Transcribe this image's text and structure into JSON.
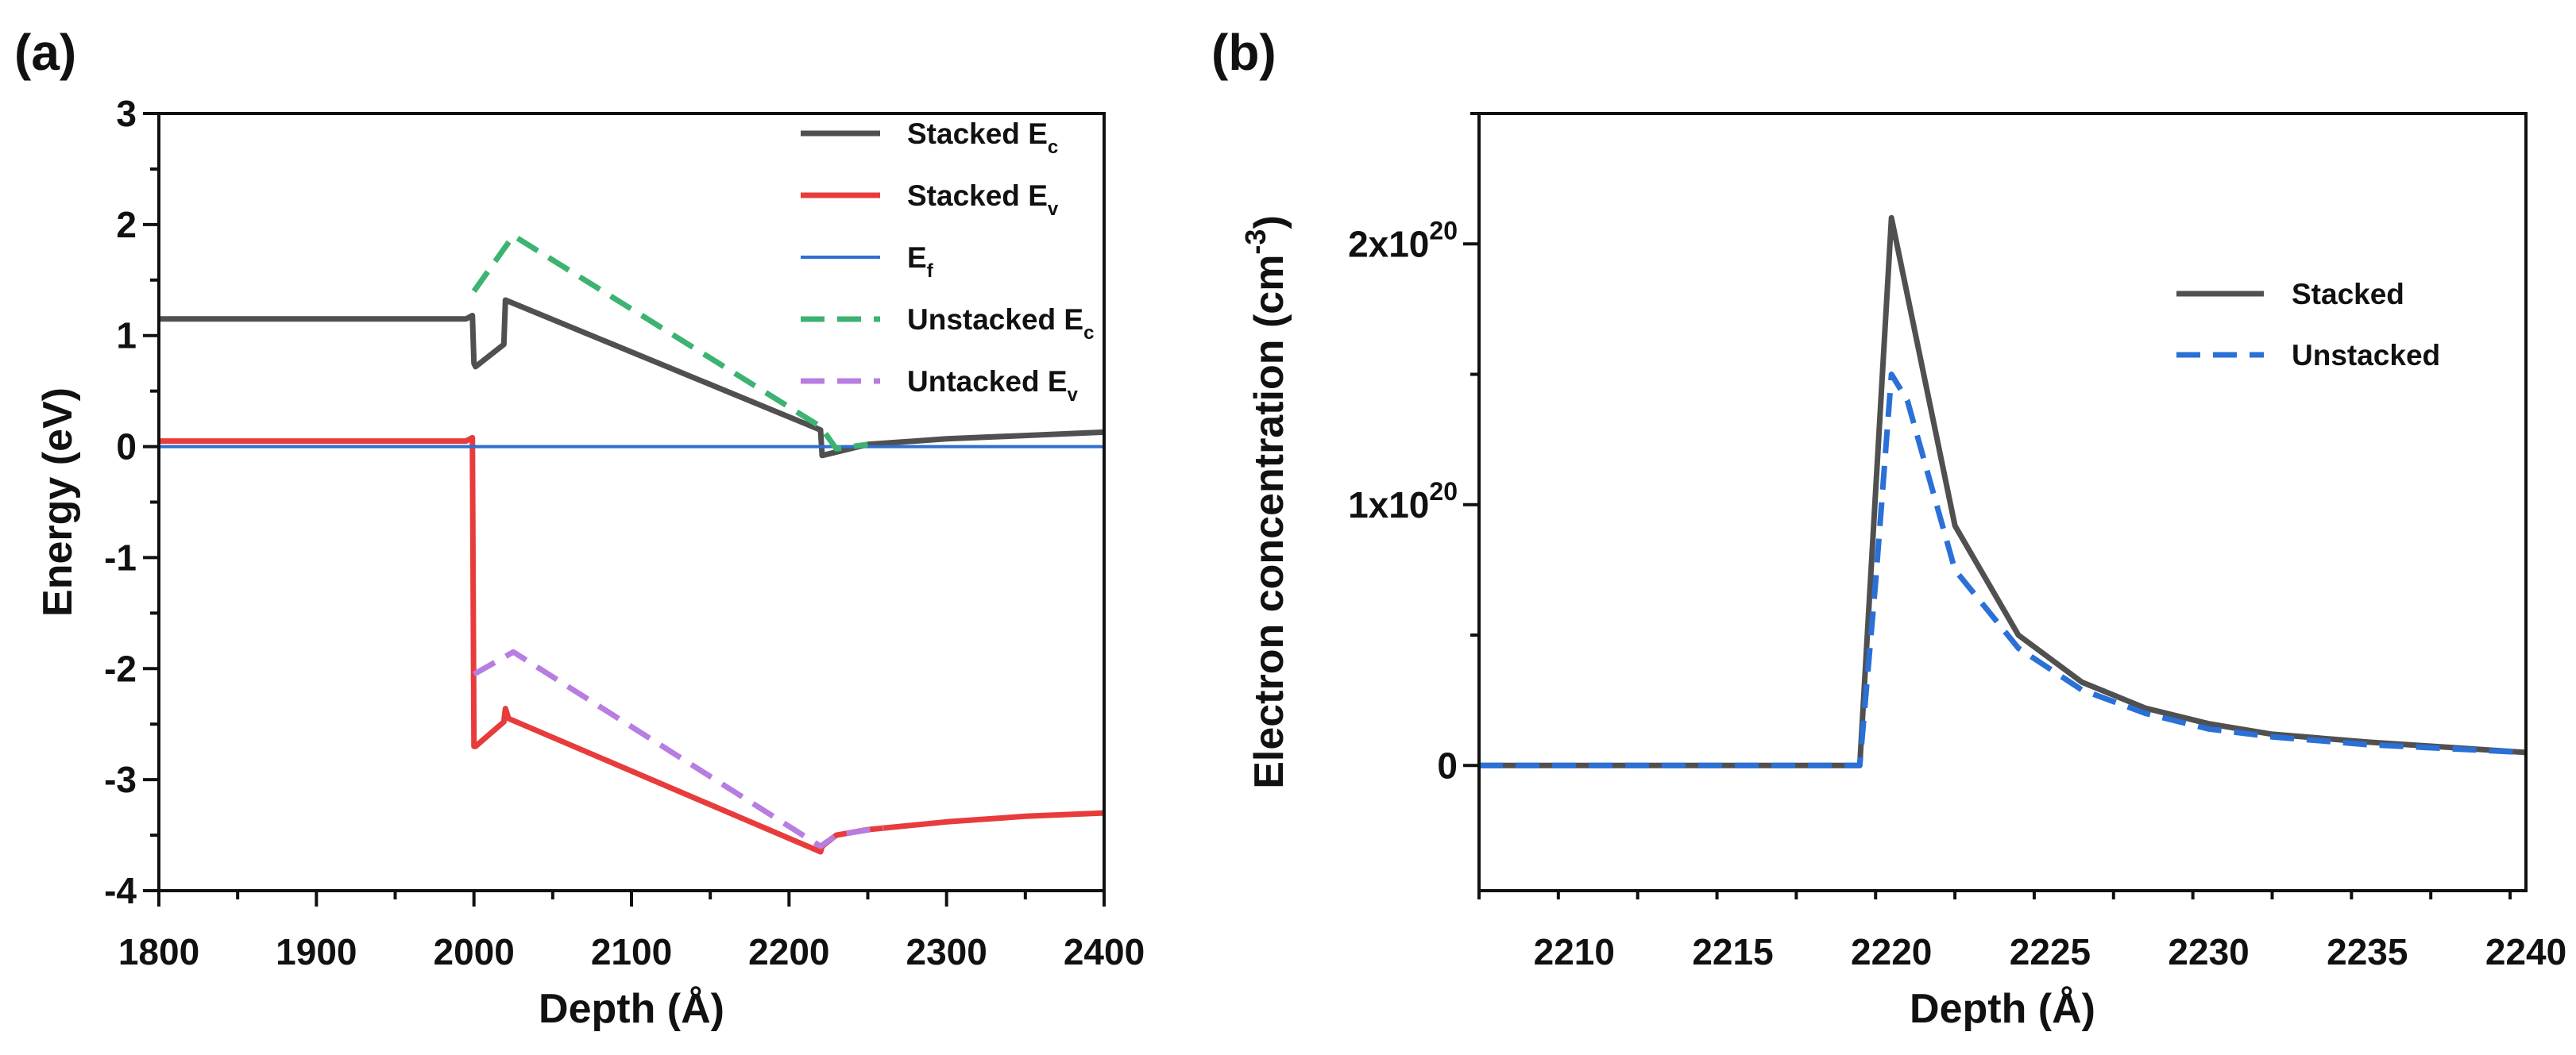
{
  "chart_data": [
    {
      "panel_label": "(a)",
      "type": "line",
      "xlabel": "Depth (Å)",
      "ylabel": "Energy (eV)",
      "xlim": [
        1800,
        2400
      ],
      "ylim": [
        -4,
        3
      ],
      "xticks": [
        "1800",
        "1900",
        "2000",
        "2100",
        "2200",
        "2300",
        "2400"
      ],
      "yticks": [
        "-4",
        "-3",
        "-2",
        "-1",
        "0",
        "1",
        "2",
        "3"
      ],
      "legend_position": "top-right",
      "series": [
        {
          "name": "Stacked E",
          "subscript": "c",
          "color": "#505050",
          "dash": "solid",
          "points": [
            [
              1800,
              1.15
            ],
            [
              1995,
              1.15
            ],
            [
              1999,
              1.18
            ],
            [
              2000,
              0.75
            ],
            [
              2001,
              0.72
            ],
            [
              2019,
              0.92
            ],
            [
              2020,
              1.32
            ],
            [
              2220,
              0.15
            ],
            [
              2221,
              -0.08
            ],
            [
              2250,
              0.02
            ],
            [
              2300,
              0.07
            ],
            [
              2350,
              0.1
            ],
            [
              2400,
              0.13
            ]
          ]
        },
        {
          "name": "Stacked E",
          "subscript": "v",
          "color": "#e83c3c",
          "dash": "solid",
          "points": [
            [
              1800,
              0.05
            ],
            [
              1995,
              0.05
            ],
            [
              1999,
              0.08
            ],
            [
              2000,
              -2.7
            ],
            [
              2001,
              -2.7
            ],
            [
              2019,
              -2.48
            ],
            [
              2020,
              -2.36
            ],
            [
              2022,
              -2.45
            ],
            [
              2220,
              -3.65
            ],
            [
              2221,
              -3.6
            ],
            [
              2230,
              -3.5
            ],
            [
              2250,
              -3.45
            ],
            [
              2300,
              -3.38
            ],
            [
              2350,
              -3.33
            ],
            [
              2400,
              -3.3
            ]
          ]
        },
        {
          "name": "E",
          "subscript": "f",
          "color": "#2f6fd0",
          "dash": "solid",
          "points": [
            [
              1800,
              0
            ],
            [
              2400,
              0
            ]
          ]
        },
        {
          "name": "Unstacked E",
          "subscript": "c",
          "color": "#3cb371",
          "dash": "dashed",
          "points": [
            [
              2000,
              1.4
            ],
            [
              2025,
              1.9
            ],
            [
              2220,
              0.18
            ],
            [
              2230,
              -0.02
            ],
            [
              2250,
              0.02
            ]
          ]
        },
        {
          "name": "Untacked E",
          "subscript": "v",
          "color": "#b77de0",
          "dash": "dashed",
          "points": [
            [
              2000,
              -2.05
            ],
            [
              2025,
              -1.85
            ],
            [
              2220,
              -3.6
            ],
            [
              2230,
              -3.5
            ],
            [
              2260,
              -3.43
            ]
          ]
        }
      ]
    },
    {
      "panel_label": "(b)",
      "type": "line",
      "xlabel": "Depth (Å)",
      "ylabel": "Electron concentration (cm",
      "ylabel_sup": "-3",
      "ylabel_close": ")",
      "xlim": [
        2207,
        2240
      ],
      "ylim": [
        -0.48,
        2.5
      ],
      "ytick_unit": "×10^20",
      "xticks": [
        "2210",
        "2215",
        "2220",
        "2225",
        "2230",
        "2235",
        "2240"
      ],
      "yticks": [
        {
          "value": 0,
          "label": "0",
          "sup": ""
        },
        {
          "value": 1,
          "label": "1x10",
          "sup": "20"
        },
        {
          "value": 2,
          "label": "2x10",
          "sup": "20"
        }
      ],
      "legend_position": "center-right",
      "series": [
        {
          "name": "Stacked",
          "color": "#505050",
          "dash": "solid",
          "points": [
            [
              2207,
              0
            ],
            [
              2219,
              0
            ],
            [
              2220,
              2.1
            ],
            [
              2222,
              0.92
            ],
            [
              2224,
              0.5
            ],
            [
              2226,
              0.32
            ],
            [
              2228,
              0.22
            ],
            [
              2230,
              0.16
            ],
            [
              2232,
              0.12
            ],
            [
              2235,
              0.09
            ],
            [
              2240,
              0.05
            ]
          ]
        },
        {
          "name": "Unstacked",
          "color": "#2a70d6",
          "dash": "dashed",
          "points": [
            [
              2207,
              0
            ],
            [
              2219,
              0
            ],
            [
              2219.5,
              0.7
            ],
            [
              2220,
              1.5
            ],
            [
              2220.5,
              1.4
            ],
            [
              2222,
              0.75
            ],
            [
              2224,
              0.45
            ],
            [
              2226,
              0.29
            ],
            [
              2228,
              0.2
            ],
            [
              2230,
              0.14
            ],
            [
              2232,
              0.11
            ],
            [
              2235,
              0.08
            ],
            [
              2240,
              0.05
            ]
          ]
        }
      ]
    }
  ]
}
